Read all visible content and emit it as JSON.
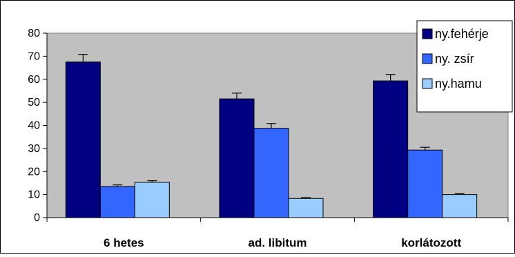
{
  "chart_data": {
    "type": "bar",
    "categories": [
      "6 hetes",
      "ad. libitum",
      "korlátozott"
    ],
    "series": [
      {
        "name": "ny.fehérje",
        "values": [
          67.5,
          51.5,
          59.3
        ],
        "errors": [
          3.3,
          2.5,
          2.8
        ],
        "color": "#000080"
      },
      {
        "name": "ny. zsír",
        "values": [
          13.5,
          38.8,
          29.3
        ],
        "errors": [
          0.7,
          2.0,
          1.2
        ],
        "color": "#3366ff"
      },
      {
        "name": "ny.hamu",
        "values": [
          15.3,
          8.3,
          10.0
        ],
        "errors": [
          0.7,
          0.4,
          0.4
        ],
        "color": "#99ccff"
      }
    ],
    "yticks": [
      0,
      10,
      20,
      30,
      40,
      50,
      60,
      70,
      80
    ],
    "ylim": [
      0,
      80
    ],
    "grid": false,
    "legend": "top-right",
    "plot_background": "#c0c0c0"
  }
}
